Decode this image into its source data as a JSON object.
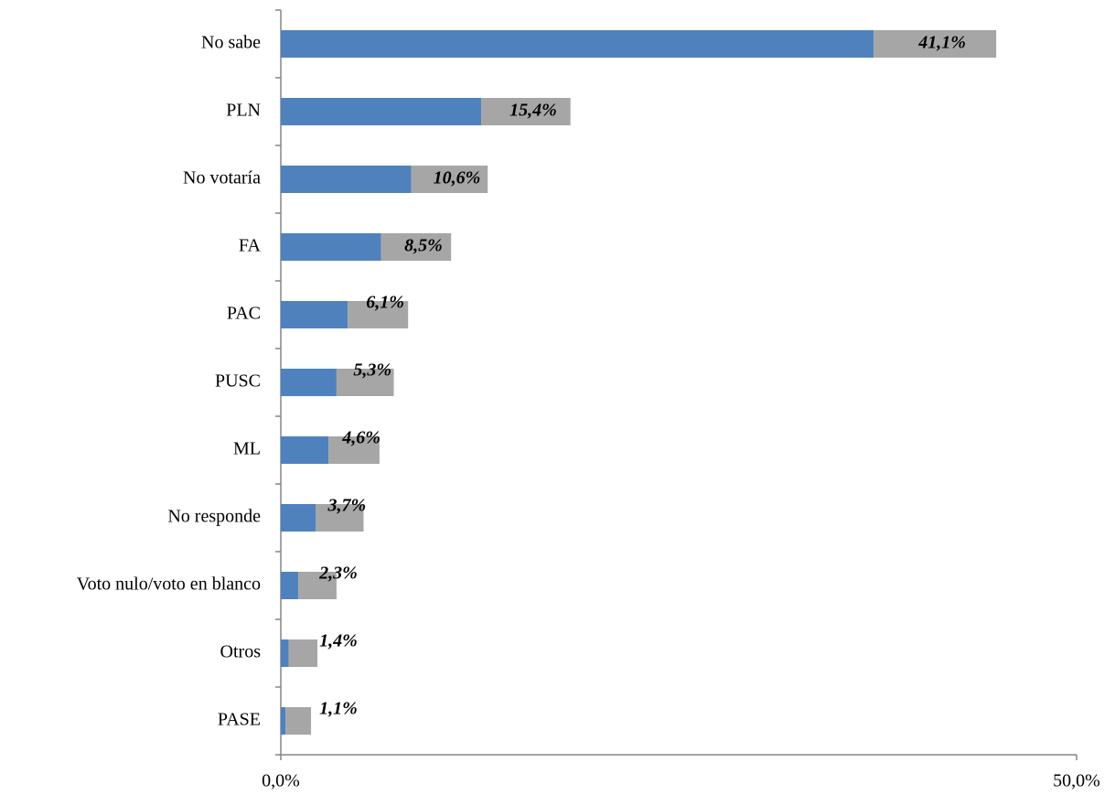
{
  "chart_data": {
    "type": "bar",
    "orientation": "horizontal",
    "categories": [
      "No sabe",
      "PLN",
      "No votaría",
      "FA",
      "PAC",
      "PUSC",
      "ML",
      "No responde",
      "Voto nulo/voto en blanco",
      "Otros",
      "PASE"
    ],
    "values": [
      41.1,
      15.4,
      10.6,
      8.5,
      6.1,
      5.3,
      4.6,
      3.7,
      2.3,
      1.4,
      1.1
    ],
    "value_labels": [
      "41,1%",
      "15,4%",
      "10,6%",
      "8,5%",
      "6,1%",
      "5,3%",
      "4,6%",
      "3,7%",
      "2,3%",
      "1,4%",
      "1,1%"
    ],
    "errors": [
      3.85,
      2.8,
      2.4,
      2.2,
      1.9,
      1.8,
      1.6,
      1.5,
      1.2,
      0.9,
      0.8
    ],
    "color": "#4f81bd",
    "error_color": "#a6a6a6",
    "xlim": [
      0,
      50
    ],
    "xticks": [
      {
        "value": 0,
        "label": "0,0%"
      },
      {
        "value": 50,
        "label": "50,0%"
      }
    ]
  }
}
